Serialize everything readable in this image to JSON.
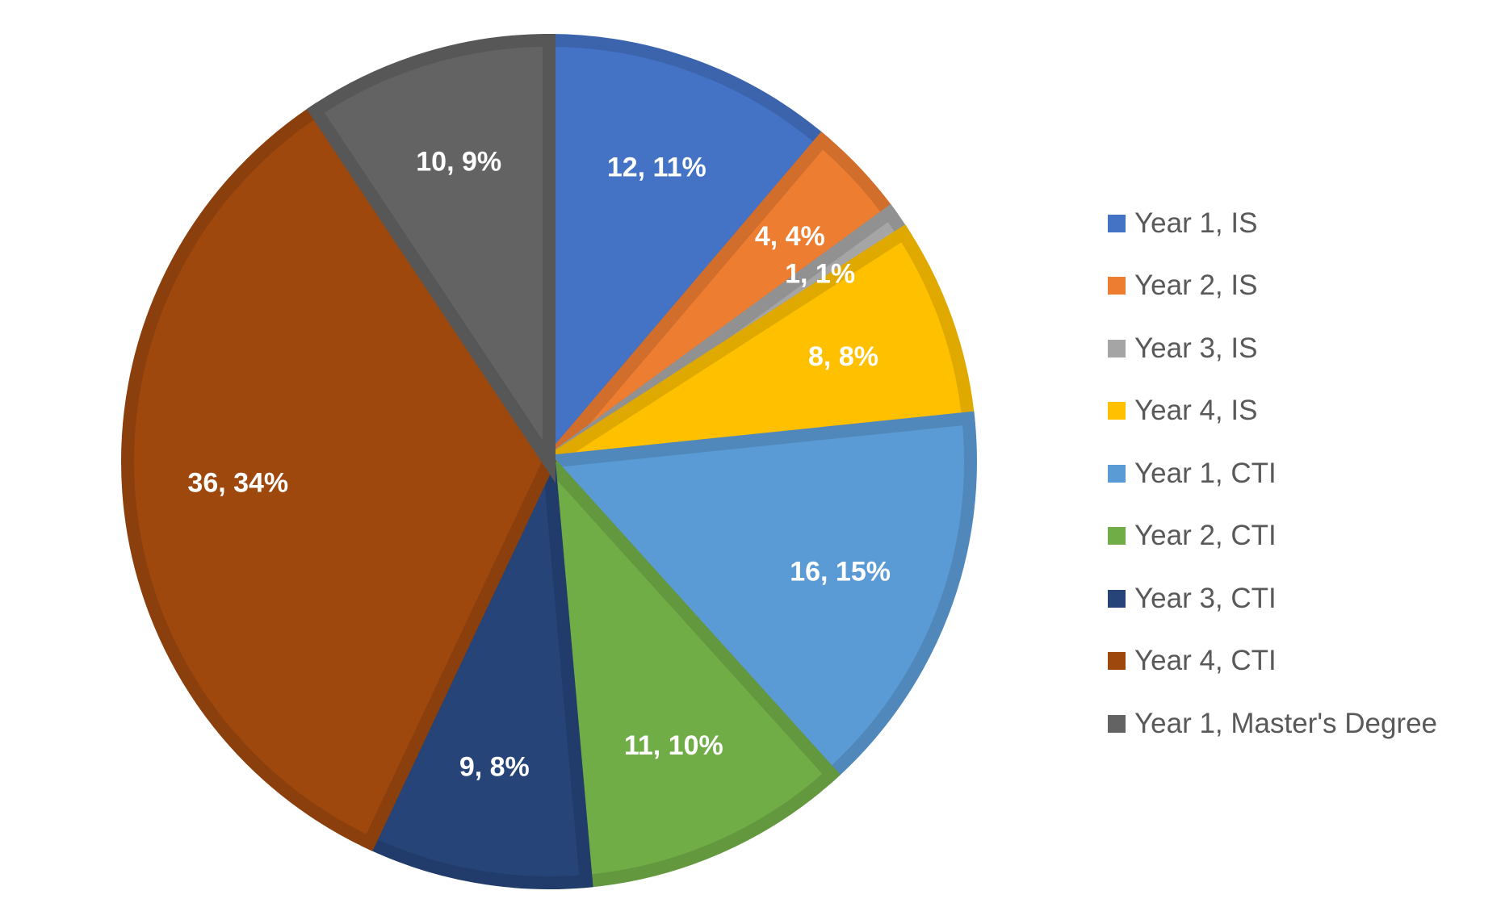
{
  "chart_data": {
    "type": "pie",
    "title": "",
    "legend_position": "right",
    "label_format": "value, percent",
    "slices": [
      {
        "name": "Year 1, IS",
        "value": 12,
        "percent": "11%",
        "color": "#4472C4"
      },
      {
        "name": "Year 2, IS",
        "value": 4,
        "percent": "4%",
        "color": "#ED7D31"
      },
      {
        "name": "Year 3, IS",
        "value": 1,
        "percent": "1%",
        "color": "#A5A5A5"
      },
      {
        "name": "Year 4, IS",
        "value": 8,
        "percent": "8%",
        "color": "#FFC000"
      },
      {
        "name": "Year 1, CTI",
        "value": 16,
        "percent": "15%",
        "color": "#5B9BD5"
      },
      {
        "name": "Year 2, CTI",
        "value": 11,
        "percent": "10%",
        "color": "#70AD47"
      },
      {
        "name": "Year 3, CTI",
        "value": 9,
        "percent": "8%",
        "color": "#264478"
      },
      {
        "name": "Year 4, CTI",
        "value": 36,
        "percent": "34%",
        "color": "#9E480E"
      },
      {
        "name": "Year 1, Master's Degree",
        "value": 10,
        "percent": "9%",
        "color": "#636363"
      }
    ]
  }
}
